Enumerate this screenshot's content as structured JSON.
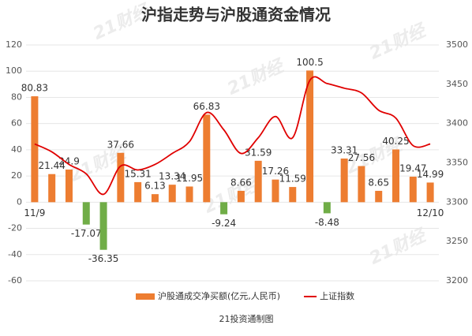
{
  "chart_data": {
    "type": "combo",
    "title": "沪指走势与沪股通资金情况",
    "source": "21投资通制图",
    "watermark": "21财经",
    "categories": [
      "11/9",
      null,
      null,
      null,
      null,
      null,
      null,
      null,
      null,
      null,
      null,
      null,
      null,
      null,
      null,
      null,
      null,
      null,
      null,
      null,
      null,
      null,
      null,
      "12/10"
    ],
    "series": [
      {
        "name": "沪股通成交净买额(亿元,人民币)",
        "type": "bar",
        "color": "#ed7d31",
        "negative_color": "#70ad47",
        "values": [
          80.83,
          21.44,
          24.9,
          -17.07,
          -36.35,
          37.66,
          15.31,
          6.13,
          13.34,
          11.95,
          66.83,
          -9.24,
          8.66,
          31.59,
          17.26,
          11.59,
          100.5,
          -8.48,
          33.31,
          27.56,
          8.65,
          40.25,
          19.47,
          14.99
        ]
      },
      {
        "name": "上证指数",
        "type": "line",
        "axis": "y2",
        "color": "#e00000",
        "values": [
          3374,
          3364,
          3348,
          3336,
          3310,
          3346,
          3341,
          3348,
          3362,
          3377,
          3414,
          3392,
          3362,
          3382,
          3409,
          3382,
          3455,
          3451,
          3445,
          3439,
          3417,
          3407,
          3372,
          3374
        ]
      }
    ],
    "ylim": [
      -60,
      120
    ],
    "yticks": [
      -60,
      -40,
      -20,
      0,
      20,
      40,
      60,
      80,
      100,
      120
    ],
    "y2lim": [
      3200,
      3500
    ],
    "y2ticks": [
      3200,
      3250,
      3300,
      3350,
      3400,
      3450,
      3500
    ],
    "grid": true,
    "legend": "bottom"
  }
}
